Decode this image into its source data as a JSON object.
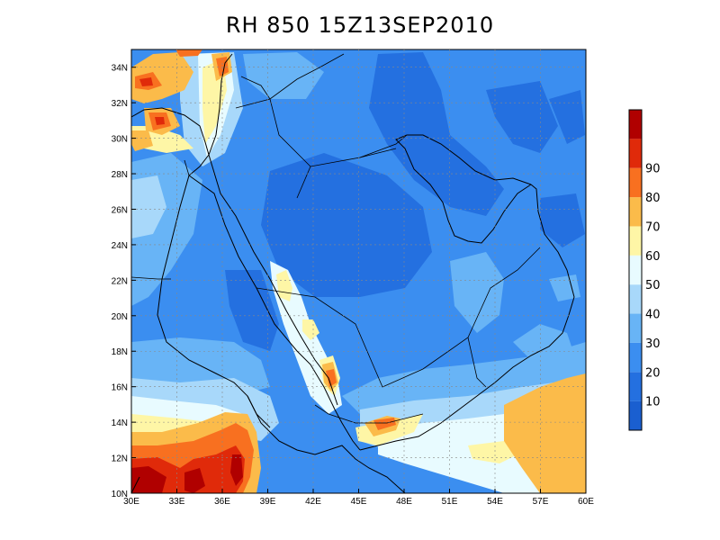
{
  "title": "RH 850 15Z13SEP2010",
  "colors": {
    "c0": "#1a5fd0",
    "c10": "#2470e0",
    "c20": "#3b8ef0",
    "c30": "#68b4f6",
    "c40": "#a8d8fa",
    "c50": "#e8fbff",
    "c60": "#fef6a6",
    "c70": "#fbbb4a",
    "c80": "#f87020",
    "c90": "#e02a0a",
    "c100": "#b00000"
  },
  "colorbar": {
    "labels": [
      "10",
      "20",
      "30",
      "40",
      "50",
      "60",
      "70",
      "80",
      "90"
    ]
  },
  "map": {
    "lon_labels": [
      "30E",
      "33E",
      "36E",
      "39E",
      "42E",
      "45E",
      "48E",
      "51E",
      "54E",
      "57E",
      "60E"
    ],
    "lat_labels": [
      "10N",
      "12N",
      "14N",
      "16N",
      "18N",
      "20N",
      "22N",
      "24N",
      "26N",
      "28N",
      "30N",
      "32N",
      "34N"
    ],
    "lon_range": [
      30,
      60
    ],
    "lat_range": [
      10,
      35
    ]
  }
}
